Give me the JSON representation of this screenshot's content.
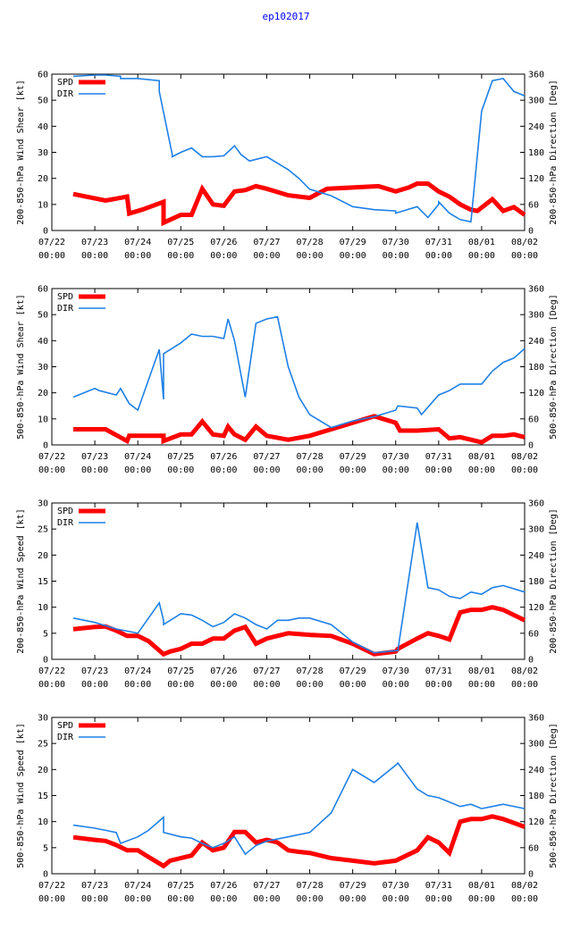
{
  "title": "ep102017",
  "colors": {
    "spd": "#ff0000",
    "dir": "#1e80e6",
    "title": "#0000ff"
  },
  "chart_data": [
    {
      "type": "line",
      "ylabel": "200-850-hPa Wind Shear [kt]",
      "y2label": "200-850-hPa Direction [Deg]",
      "ylim": [
        0,
        60
      ],
      "yticks": [
        0,
        10,
        20,
        30,
        40,
        50,
        60
      ],
      "y2lim": [
        0,
        360
      ],
      "y2ticks": [
        0,
        60,
        120,
        180,
        240,
        300,
        360
      ],
      "xlim": [
        0,
        11
      ],
      "xticks": [
        "07/22",
        "07/23",
        "07/24",
        "07/25",
        "07/26",
        "07/27",
        "07/28",
        "07/29",
        "07/30",
        "07/31",
        "08/01",
        "08/02"
      ],
      "xtick_time": "00:00",
      "legend": [
        "SPD",
        "DIR"
      ],
      "series": [
        {
          "name": "SPD",
          "x": [
            0.5,
            1.25,
            1.75,
            1.8,
            2.1,
            2.6,
            2.6,
            3.0,
            3.25,
            3.5,
            3.75,
            4.0,
            4.25,
            4.5,
            4.75,
            5.0,
            5.5,
            6.0,
            6.4,
            7.0,
            7.6,
            8.0,
            8.3,
            8.5,
            8.75,
            9.0,
            9.25,
            9.5,
            9.75,
            9.9,
            10.25,
            10.5,
            10.75,
            11.0
          ],
          "y": [
            14,
            11.5,
            13,
            6.5,
            8,
            11,
            3,
            6,
            6,
            16,
            10,
            9.5,
            15,
            15.5,
            17,
            16,
            13.5,
            12.5,
            16,
            16.5,
            17,
            15,
            16.5,
            18,
            18,
            15,
            13,
            10,
            8,
            7.5,
            12,
            7.5,
            9,
            6
          ]
        },
        {
          "name": "DIR",
          "x": [
            0.5,
            1.0,
            1.25,
            1.6,
            1.6,
            2.0,
            2.5,
            2.5,
            2.8,
            2.8,
            3.0,
            3.25,
            3.5,
            3.75,
            4.0,
            4.25,
            4.4,
            4.6,
            5.0,
            5.25,
            5.5,
            5.75,
            6.0,
            6.5,
            7.0,
            7.5,
            8.0,
            8.0,
            8.5,
            8.75,
            9.0,
            9.0,
            9.25,
            9.5,
            9.75,
            10.0,
            10.25,
            10.5,
            10.75,
            11.0
          ],
          "y": [
            355,
            358,
            358,
            355,
            350,
            350,
            345,
            320,
            175,
            170,
            180,
            190,
            170,
            170,
            172,
            195,
            175,
            160,
            170,
            155,
            140,
            120,
            95,
            80,
            55,
            48,
            45,
            40,
            55,
            30,
            60,
            66,
            40,
            25,
            20,
            275,
            345,
            350,
            320,
            310
          ]
        }
      ]
    },
    {
      "type": "line",
      "ylabel": "500-850-hPa Wind Shear [kt]",
      "y2label": "500-850-hPa Direction [Deg]",
      "ylim": [
        0,
        60
      ],
      "yticks": [
        0,
        10,
        20,
        30,
        40,
        50,
        60
      ],
      "y2lim": [
        0,
        360
      ],
      "y2ticks": [
        0,
        60,
        120,
        180,
        240,
        300,
        360
      ],
      "xlim": [
        0,
        11
      ],
      "xticks": [
        "07/22",
        "07/23",
        "07/24",
        "07/25",
        "07/26",
        "07/27",
        "07/28",
        "07/29",
        "07/30",
        "07/31",
        "08/01",
        "08/02"
      ],
      "xtick_time": "00:00",
      "legend": [
        "SPD",
        "DIR"
      ],
      "series": [
        {
          "name": "SPD",
          "x": [
            0.5,
            1.25,
            1.75,
            1.8,
            2.5,
            2.6,
            2.6,
            3.0,
            3.25,
            3.5,
            3.75,
            4.0,
            4.1,
            4.25,
            4.5,
            4.75,
            5.0,
            5.5,
            6.0,
            6.5,
            7.0,
            7.5,
            8.0,
            8.1,
            8.5,
            9.0,
            9.25,
            9.5,
            10.0,
            10.25,
            10.5,
            10.75,
            11.0
          ],
          "y": [
            6,
            6,
            1.5,
            3.5,
            3.5,
            3.5,
            1.5,
            4,
            4,
            9,
            4,
            3.5,
            7,
            4,
            2,
            7,
            3.5,
            2,
            3.5,
            6,
            8.5,
            11,
            8.5,
            5.5,
            5.5,
            6,
            2.5,
            3,
            1,
            3.5,
            3.5,
            4,
            3
          ]
        },
        {
          "name": "DIR",
          "x": [
            0.5,
            1.0,
            1.1,
            1.5,
            1.6,
            1.8,
            2.0,
            2.5,
            2.6,
            2.6,
            3.0,
            3.25,
            3.5,
            3.75,
            4.0,
            4.1,
            4.25,
            4.5,
            4.75,
            5.0,
            5.25,
            5.5,
            5.75,
            6.0,
            6.5,
            7.0,
            7.5,
            8.0,
            8.05,
            8.5,
            8.6,
            9.0,
            9.25,
            9.5,
            10.0,
            10.25,
            10.5,
            10.75,
            11.0
          ],
          "y": [
            110,
            130,
            125,
            115,
            130,
            95,
            80,
            220,
            105,
            210,
            235,
            255,
            250,
            250,
            245,
            290,
            240,
            110,
            280,
            290,
            295,
            180,
            110,
            70,
            40,
            55,
            65,
            80,
            90,
            85,
            70,
            115,
            125,
            140,
            140,
            170,
            190,
            200,
            222
          ]
        }
      ]
    },
    {
      "type": "line",
      "ylabel": "200-850-hPa Wind Speed [kt]",
      "y2label": "200-850-hPa Direction [Deg]",
      "ylim": [
        0,
        30
      ],
      "yticks": [
        0,
        5,
        10,
        15,
        20,
        25,
        30
      ],
      "y2lim": [
        0,
        360
      ],
      "y2ticks": [
        0,
        60,
        120,
        180,
        240,
        300,
        360
      ],
      "xlim": [
        0,
        11
      ],
      "xticks": [
        "07/22",
        "07/23",
        "07/24",
        "07/25",
        "07/26",
        "07/27",
        "07/28",
        "07/29",
        "07/30",
        "07/31",
        "08/01",
        "08/02"
      ],
      "xtick_time": "00:00",
      "legend": [
        "SPD",
        "DIR"
      ],
      "series": [
        {
          "name": "SPD",
          "x": [
            0.5,
            1.0,
            1.25,
            1.5,
            1.75,
            2.0,
            2.25,
            2.6,
            2.75,
            3.0,
            3.25,
            3.5,
            3.75,
            4.0,
            4.25,
            4.5,
            4.75,
            5.0,
            5.5,
            6.0,
            6.5,
            7.0,
            7.5,
            8.0,
            8.05,
            8.5,
            8.75,
            9.0,
            9.25,
            9.5,
            9.75,
            10.0,
            10.25,
            10.5,
            11.0
          ],
          "y": [
            5.8,
            6.2,
            6.3,
            5.5,
            4.5,
            4.5,
            3.5,
            1,
            1.5,
            2,
            3,
            3,
            4,
            4,
            5.5,
            6.2,
            3,
            4,
            5,
            4.7,
            4.5,
            3,
            1,
            1.5,
            2,
            4,
            5,
            4.5,
            3.8,
            9,
            9.5,
            9.5,
            10,
            9.5,
            7.5
          ]
        },
        {
          "name": "DIR",
          "x": [
            0.5,
            1.0,
            1.5,
            2.0,
            2.5,
            2.6,
            2.6,
            3.0,
            3.25,
            3.5,
            3.75,
            4.0,
            4.25,
            4.5,
            4.75,
            5.0,
            5.25,
            5.5,
            5.75,
            6.0,
            6.5,
            7.0,
            7.5,
            8.0,
            8.05,
            8.5,
            8.75,
            9.0,
            9.25,
            9.5,
            9.75,
            10.0,
            10.25,
            10.5,
            11.0
          ],
          "y": [
            95,
            85,
            70,
            60,
            130,
            90,
            80,
            105,
            102,
            90,
            75,
            85,
            105,
            95,
            80,
            70,
            90,
            90,
            95,
            95,
            80,
            40,
            15,
            20,
            20,
            315,
            165,
            160,
            145,
            140,
            155,
            150,
            165,
            170,
            155
          ]
        }
      ]
    },
    {
      "type": "line",
      "ylabel": "500-850-hPa Wind Speed [kt]",
      "y2label": "500-850-hPa Direction [Deg]",
      "ylim": [
        0,
        30
      ],
      "yticks": [
        0,
        5,
        10,
        15,
        20,
        25,
        30
      ],
      "y2lim": [
        0,
        360
      ],
      "y2ticks": [
        0,
        60,
        120,
        180,
        240,
        300,
        360
      ],
      "xlim": [
        0,
        11
      ],
      "xticks": [
        "07/22",
        "07/23",
        "07/24",
        "07/25",
        "07/26",
        "07/27",
        "07/28",
        "07/29",
        "07/30",
        "07/31",
        "08/01",
        "08/02"
      ],
      "xtick_time": "00:00",
      "legend": [
        "SPD",
        "DIR"
      ],
      "series": [
        {
          "name": "SPD",
          "x": [
            0.5,
            1.0,
            1.25,
            1.5,
            1.75,
            2.0,
            2.25,
            2.6,
            2.75,
            3.0,
            3.25,
            3.5,
            3.75,
            4.0,
            4.25,
            4.5,
            4.75,
            5.0,
            5.25,
            5.5,
            5.75,
            6.0,
            6.5,
            7.0,
            7.5,
            8.0,
            8.5,
            8.75,
            9.0,
            9.25,
            9.5,
            9.75,
            10.0,
            10.25,
            10.5,
            11.0
          ],
          "y": [
            7,
            6.5,
            6.3,
            5.5,
            4.5,
            4.5,
            3.2,
            1.5,
            2.5,
            3,
            3.5,
            6,
            4.5,
            5,
            8,
            8,
            6,
            6.5,
            6,
            4.5,
            4.2,
            4,
            3,
            2.5,
            2,
            2.5,
            4.5,
            7,
            6,
            4,
            10,
            10.5,
            10.5,
            11,
            10.5,
            9
          ]
        },
        {
          "name": "DIR",
          "x": [
            0.5,
            1.0,
            1.25,
            1.5,
            1.6,
            2.0,
            2.25,
            2.6,
            2.6,
            3.0,
            3.25,
            3.5,
            3.75,
            4.0,
            4.25,
            4.5,
            4.75,
            5.0,
            5.5,
            6.0,
            6.5,
            7.0,
            7.5,
            8.0,
            8.05,
            8.5,
            8.75,
            9.0,
            9.5,
            9.75,
            10.0,
            10.25,
            10.5,
            11.0
          ],
          "y": [
            112,
            105,
            100,
            95,
            70,
            85,
            100,
            130,
            95,
            85,
            82,
            70,
            60,
            70,
            85,
            45,
            65,
            75,
            85,
            95,
            140,
            240,
            210,
            250,
            255,
            195,
            180,
            175,
            155,
            160,
            150,
            155,
            160,
            150
          ]
        }
      ]
    }
  ]
}
